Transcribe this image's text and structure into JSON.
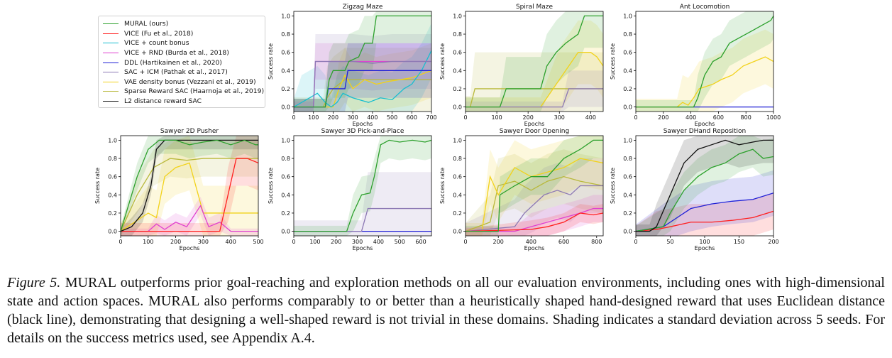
{
  "legend": {
    "items": [
      {
        "name": "MURAL (ours)",
        "color": "#2ca02c"
      },
      {
        "name": "VICE (Fu et al., 2018)",
        "color": "#ff1f1f"
      },
      {
        "name": "VICE + count bonus",
        "color": "#17becf"
      },
      {
        "name": "VICE + RND (Burda et al., 2018)",
        "color": "#e040d0"
      },
      {
        "name": "DDL (Hartikainen et al., 2020)",
        "color": "#1f1fd6"
      },
      {
        "name": "SAC + ICM (Pathak et al., 2017)",
        "color": "#8c78b4"
      },
      {
        "name": "VAE density bonus (Vezzani et al., 2019)",
        "color": "#f2d21a"
      },
      {
        "name": "Sparse Reward SAC (Haarnoja et al., 2019)",
        "color": "#b8b83a"
      },
      {
        "name": "L2 distance reward SAC",
        "color": "#111111"
      }
    ]
  },
  "caption": {
    "label": "Figure 5.",
    "text": " MURAL outperforms prior goal-reaching and exploration methods on all our evaluation environments, including ones with high-dimensional state and action spaces. MURAL also performs comparably to or better than a heuristically shaped hand-designed reward that uses Euclidean distance (black line), demonstrating that designing a well-shaped reward is not trivial in these domains. Shading indicates a standard deviation across 5 seeds. For details on the success metrics used, see Appendix A.4."
  },
  "chart_data": [
    {
      "type": "line",
      "title": "Zigzag Maze",
      "xlabel": "Epochs",
      "ylabel": "Success rate",
      "xlim": [
        0,
        700
      ],
      "ylim": [
        -0.05,
        1.05
      ],
      "xticks": [
        0,
        100,
        200,
        300,
        400,
        500,
        600,
        700
      ],
      "yticks": [
        0.0,
        0.2,
        0.4,
        0.6,
        0.8,
        1.0
      ],
      "series": [
        {
          "name": "Sparse Reward SAC (Haarnoja et al., 2019)",
          "x": [
            0,
            100,
            150,
            170,
            200,
            260,
            700
          ],
          "y": [
            0,
            0,
            0,
            0.1,
            0.2,
            0.3,
            0.3
          ],
          "band": 0.35
        },
        {
          "name": "VAE density bonus (Vezzani et al., 2019)",
          "x": [
            0,
            200,
            230,
            260,
            300,
            360,
            420,
            480,
            540,
            600,
            700
          ],
          "y": [
            0,
            0,
            0.2,
            0.35,
            0.2,
            0.3,
            0.25,
            0.28,
            0.3,
            0.32,
            0.4
          ],
          "band": 0.3
        },
        {
          "name": "VICE + count bonus",
          "x": [
            0,
            40,
            80,
            120,
            160,
            190,
            220,
            250,
            300,
            380,
            440,
            500,
            560,
            600,
            650,
            700
          ],
          "y": [
            0,
            0.05,
            0.1,
            0.15,
            0.05,
            0,
            0.05,
            0.15,
            0.1,
            0.05,
            0.1,
            0.08,
            0.2,
            0.25,
            0.4,
            0.62
          ],
          "band": 0.3
        },
        {
          "name": "VICE + RND (Burda et al., 2018)",
          "x": [
            0,
            100,
            110,
            700
          ],
          "y": [
            0,
            0,
            0.5,
            0.5
          ],
          "band": 0.2
        },
        {
          "name": "SAC + ICM (Pathak et al., 2017)",
          "x": [
            0,
            100,
            110,
            300,
            400,
            500,
            700
          ],
          "y": [
            0,
            0,
            0.5,
            0.5,
            0.48,
            0.5,
            0.5
          ],
          "band": 0.3
        },
        {
          "name": "DDL (Hartikainen et al., 2020)",
          "x": [
            0,
            160,
            175,
            260,
            275,
            700
          ],
          "y": [
            0,
            0,
            0.2,
            0.2,
            0.4,
            0.4
          ],
          "band": 0.3
        },
        {
          "name": "MURAL (ours)",
          "x": [
            0,
            160,
            180,
            200,
            260,
            280,
            330,
            360,
            400,
            420,
            700
          ],
          "y": [
            0,
            0,
            0.3,
            0.4,
            0.4,
            0.5,
            0.55,
            0.7,
            0.7,
            1.0,
            1.0
          ],
          "band": 0.3
        }
      ]
    },
    {
      "type": "line",
      "title": "Spiral Maze",
      "xlabel": "Epochs",
      "ylabel": "Success rate",
      "xlim": [
        0,
        440
      ],
      "ylim": [
        -0.05,
        1.05
      ],
      "xticks": [
        0,
        100,
        200,
        300,
        400
      ],
      "yticks": [
        0.0,
        0.2,
        0.4,
        0.6,
        0.8,
        1.0
      ],
      "series": [
        {
          "name": "Sparse Reward SAC (Haarnoja et al., 2019)",
          "x": [
            0,
            15,
            30,
            440
          ],
          "y": [
            0,
            0,
            0.2,
            0.2
          ],
          "band": 0.4
        },
        {
          "name": "VAE density bonus (Vezzani et al., 2019)",
          "x": [
            0,
            240,
            300,
            340,
            360,
            400,
            420,
            440
          ],
          "y": [
            0,
            0,
            0.3,
            0.5,
            0.6,
            0.6,
            0.55,
            0.45
          ],
          "band": 0.35
        },
        {
          "name": "SAC + ICM (Pathak et al., 2017)",
          "x": [
            0,
            310,
            330,
            440
          ],
          "y": [
            0,
            0,
            0.2,
            0.2
          ],
          "band": 0.2
        },
        {
          "name": "MURAL (ours)",
          "x": [
            0,
            110,
            130,
            240,
            260,
            290,
            320,
            360,
            380,
            440
          ],
          "y": [
            0,
            0,
            0.2,
            0.2,
            0.45,
            0.6,
            0.7,
            0.8,
            1.0,
            1.0
          ],
          "band": 0.35
        }
      ]
    },
    {
      "type": "line",
      "title": "Ant Locomotion",
      "xlabel": "Epochs",
      "ylabel": "Success rate",
      "xlim": [
        0,
        1000
      ],
      "ylim": [
        -0.05,
        1.05
      ],
      "xticks": [
        0,
        200,
        400,
        600,
        800,
        1000
      ],
      "yticks": [
        0.0,
        0.2,
        0.4,
        0.6,
        0.8,
        1.0
      ],
      "series": [
        {
          "name": "DDL (Hartikainen et al., 2020)",
          "x": [
            0,
            1000
          ],
          "y": [
            0,
            0
          ],
          "band": 0
        },
        {
          "name": "VAE density bonus (Vezzani et al., 2019)",
          "x": [
            0,
            300,
            340,
            380,
            420,
            460,
            500,
            560,
            620,
            700,
            780,
            860,
            940,
            1000
          ],
          "y": [
            0,
            0,
            0.05,
            0.02,
            0.1,
            0.2,
            0.22,
            0.25,
            0.3,
            0.35,
            0.45,
            0.5,
            0.55,
            0.5
          ],
          "band": 0.3
        },
        {
          "name": "MURAL (ours)",
          "x": [
            0,
            420,
            450,
            500,
            560,
            620,
            680,
            740,
            800,
            860,
            920,
            980,
            1000
          ],
          "y": [
            0,
            0,
            0.1,
            0.35,
            0.5,
            0.55,
            0.7,
            0.75,
            0.8,
            0.85,
            0.9,
            0.95,
            1.0
          ],
          "band": 0.25
        }
      ]
    },
    {
      "type": "line",
      "title": "Sawyer 2D Pusher",
      "xlabel": "Epochs",
      "ylabel": "Success rate",
      "xlim": [
        0,
        500
      ],
      "ylim": [
        -0.05,
        1.05
      ],
      "xticks": [
        0,
        100,
        200,
        300,
        400,
        500
      ],
      "yticks": [
        0.0,
        0.2,
        0.4,
        0.6,
        0.8,
        1.0
      ],
      "series": [
        {
          "name": "Sparse Reward SAC (Haarnoja et al., 2019)",
          "x": [
            0,
            60,
            120,
            180,
            240,
            300,
            360,
            420,
            480,
            500
          ],
          "y": [
            0,
            0.4,
            0.7,
            0.8,
            0.78,
            0.8,
            0.8,
            0.8,
            0.8,
            0.8
          ],
          "band": 0.2
        },
        {
          "name": "VAE density bonus (Vezzani et al., 2019)",
          "x": [
            0,
            100,
            130,
            160,
            200,
            250,
            300,
            360,
            500
          ],
          "y": [
            0,
            0.2,
            0.15,
            0.6,
            0.7,
            0.75,
            0.2,
            0.2,
            0.2
          ],
          "band": 0.3
        },
        {
          "name": "VICE + RND (Burda et al., 2018)",
          "x": [
            0,
            100,
            130,
            160,
            200,
            240,
            290,
            320,
            360,
            400,
            500
          ],
          "y": [
            0,
            0,
            0.08,
            0.02,
            0.1,
            0.05,
            0.28,
            0.05,
            0.1,
            0.0,
            0.0
          ],
          "band": 0.1
        },
        {
          "name": "VICE (Fu et al., 2018)",
          "x": [
            0,
            360,
            390,
            420,
            460,
            500
          ],
          "y": [
            0,
            0,
            0.4,
            0.8,
            0.8,
            0.75
          ],
          "band": 0.3
        },
        {
          "name": "L2 distance reward SAC",
          "x": [
            0,
            40,
            80,
            110,
            130,
            160,
            500
          ],
          "y": [
            0,
            0.05,
            0.2,
            0.5,
            0.9,
            1.0,
            1.0
          ],
          "band": 0.1
        },
        {
          "name": "MURAL (ours)",
          "x": [
            0,
            60,
            100,
            140,
            200,
            250,
            300,
            350,
            400,
            450,
            490,
            500
          ],
          "y": [
            0,
            0.6,
            0.9,
            1.0,
            1.0,
            0.95,
            0.98,
            1.0,
            0.95,
            1.0,
            0.95,
            0.95
          ],
          "band": 0.15
        }
      ]
    },
    {
      "type": "line",
      "title": "Sawyer 3D Pick-and-Place",
      "xlabel": "Epochs",
      "ylabel": "Success rate",
      "xlim": [
        0,
        650
      ],
      "ylim": [
        -0.05,
        1.05
      ],
      "xticks": [
        0,
        100,
        200,
        300,
        400,
        500,
        600
      ],
      "yticks": [
        0.0,
        0.2,
        0.4,
        0.6,
        0.8,
        1.0
      ],
      "series": [
        {
          "name": "DDL (Hartikainen et al., 2020)",
          "x": [
            0,
            650
          ],
          "y": [
            0,
            0
          ],
          "band": 0
        },
        {
          "name": "SAC + ICM (Pathak et al., 2017)",
          "x": [
            0,
            320,
            350,
            650
          ],
          "y": [
            0,
            0,
            0.25,
            0.25
          ],
          "band": 0.4
        },
        {
          "name": "MURAL (ours)",
          "x": [
            0,
            250,
            280,
            320,
            360,
            380,
            410,
            450,
            500,
            560,
            620,
            650
          ],
          "y": [
            0,
            0,
            0.2,
            0.4,
            0.42,
            0.6,
            0.95,
            1.0,
            0.98,
            1.0,
            0.98,
            1.0
          ],
          "band": 0.2
        }
      ]
    },
    {
      "type": "line",
      "title": "Sawyer Door Opening",
      "xlabel": "Epochs",
      "ylabel": "Success rate",
      "xlim": [
        0,
        840
      ],
      "ylim": [
        -0.05,
        1.05
      ],
      "xticks": [
        0,
        200,
        400,
        600,
        800
      ],
      "yticks": [
        0.0,
        0.2,
        0.4,
        0.6,
        0.8,
        1.0
      ],
      "series": [
        {
          "name": "Sparse Reward SAC (Haarnoja et al., 2019)",
          "x": [
            0,
            150,
            200,
            300,
            400,
            500,
            600,
            700,
            840
          ],
          "y": [
            0,
            0.1,
            0.5,
            0.55,
            0.45,
            0.55,
            0.6,
            0.55,
            0.5
          ],
          "band": 0.3
        },
        {
          "name": "VAE density bonus (Vezzani et al., 2019)",
          "x": [
            0,
            100,
            150,
            200,
            300,
            400,
            500,
            600,
            700,
            840
          ],
          "y": [
            0,
            0,
            0.6,
            0.4,
            0.7,
            0.6,
            0.65,
            0.7,
            0.8,
            0.75
          ],
          "band": 0.3
        },
        {
          "name": "SAC + ICM (Pathak et al., 2017)",
          "x": [
            0,
            300,
            360,
            420,
            480,
            560,
            640,
            700,
            840
          ],
          "y": [
            0,
            0.05,
            0.2,
            0.3,
            0.4,
            0.45,
            0.4,
            0.5,
            0.5
          ],
          "band": 0.3
        },
        {
          "name": "VICE + RND (Burda et al., 2018)",
          "x": [
            0,
            300,
            400,
            500,
            600,
            700,
            780,
            840
          ],
          "y": [
            0,
            0,
            0.05,
            0.1,
            0.15,
            0.2,
            0.25,
            0.25
          ],
          "band": 0.15
        },
        {
          "name": "VICE (Fu et al., 2018)",
          "x": [
            0,
            400,
            500,
            600,
            700,
            780,
            840
          ],
          "y": [
            0,
            0.02,
            0.05,
            0.1,
            0.2,
            0.18,
            0.2
          ],
          "band": 0.1
        },
        {
          "name": "MURAL (ours)",
          "x": [
            0,
            200,
            210,
            300,
            400,
            500,
            600,
            700,
            780,
            840
          ],
          "y": [
            0,
            0,
            0.4,
            0.5,
            0.6,
            0.6,
            0.8,
            0.9,
            1.0,
            1.0
          ],
          "band": 0.2
        }
      ]
    },
    {
      "type": "line",
      "title": "Sawyer DHand Reposition",
      "xlabel": "Epochs",
      "ylabel": "Success rate",
      "xlim": [
        0,
        200
      ],
      "ylim": [
        -0.05,
        1.05
      ],
      "xticks": [
        0,
        50,
        100,
        150,
        200
      ],
      "yticks": [
        0.0,
        0.2,
        0.4,
        0.6,
        0.8,
        1.0
      ],
      "series": [
        {
          "name": "VICE (Fu et al., 2018)",
          "x": [
            0,
            30,
            50,
            80,
            110,
            140,
            170,
            200
          ],
          "y": [
            0,
            0.02,
            0.05,
            0.1,
            0.1,
            0.12,
            0.15,
            0.22
          ],
          "band": 0.2
        },
        {
          "name": "DDL (Hartikainen et al., 2020)",
          "x": [
            0,
            40,
            60,
            80,
            110,
            140,
            170,
            200
          ],
          "y": [
            0,
            0.05,
            0.15,
            0.25,
            0.3,
            0.33,
            0.35,
            0.42
          ],
          "band": 0.25
        },
        {
          "name": "MURAL (ours)",
          "x": [
            0,
            40,
            50,
            70,
            90,
            110,
            130,
            150,
            170,
            185,
            200
          ],
          "y": [
            0,
            0.05,
            0.2,
            0.45,
            0.6,
            0.7,
            0.75,
            0.85,
            0.9,
            0.8,
            0.82
          ],
          "band": 0.2
        },
        {
          "name": "L2 distance reward SAC",
          "x": [
            0,
            20,
            30,
            50,
            70,
            90,
            110,
            130,
            150,
            170,
            185,
            200
          ],
          "y": [
            0,
            0,
            0.05,
            0.4,
            0.75,
            0.9,
            0.95,
            1.0,
            0.95,
            0.98,
            1.0,
            1.0
          ],
          "band": 0.25
        }
      ]
    }
  ]
}
